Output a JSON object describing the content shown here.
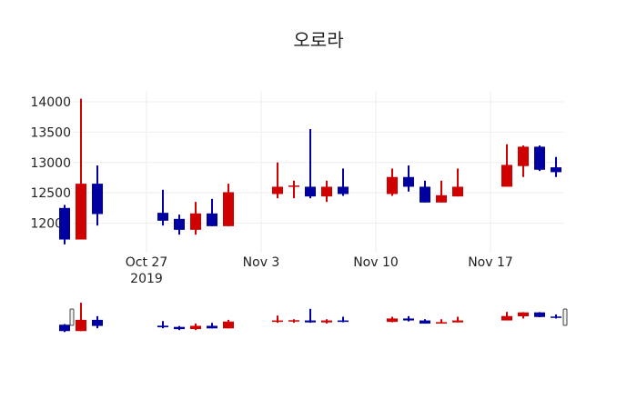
{
  "chart_data": {
    "type": "candlestick",
    "title": "오로라",
    "xlabel": "",
    "ylabel": "",
    "ylim": [
      11600,
      14130
    ],
    "yticks": [
      12000,
      12500,
      13000,
      13500,
      14000
    ],
    "xticks": [
      {
        "date": "2019-10-27",
        "label": "Oct 27",
        "sublabel": "2019"
      },
      {
        "date": "2019-11-03",
        "label": "Nov 3",
        "sublabel": ""
      },
      {
        "date": "2019-11-10",
        "label": "Nov 10",
        "sublabel": ""
      },
      {
        "date": "2019-11-17",
        "label": "Nov 17",
        "sublabel": ""
      }
    ],
    "grid": true,
    "rangeslider": true,
    "increasing_color": "#d00000",
    "decreasing_color": "#0000a0",
    "x": [
      "2019-10-22",
      "2019-10-23",
      "2019-10-24",
      "2019-10-28",
      "2019-10-29",
      "2019-10-30",
      "2019-10-31",
      "2019-11-01",
      "2019-11-04",
      "2019-11-05",
      "2019-11-06",
      "2019-11-07",
      "2019-11-08",
      "2019-11-11",
      "2019-11-12",
      "2019-11-13",
      "2019-11-14",
      "2019-11-15",
      "2019-11-18",
      "2019-11-19",
      "2019-11-20",
      "2019-11-21"
    ],
    "open": [
      12250,
      11730,
      12650,
      12170,
      12070,
      11890,
      12160,
      11950,
      12480,
      12600,
      12600,
      12440,
      12600,
      12480,
      12760,
      12600,
      12340,
      12440,
      12600,
      12940,
      13260,
      12920
    ],
    "high": [
      12300,
      14050,
      12950,
      12550,
      12140,
      12350,
      12400,
      12650,
      13000,
      12700,
      13550,
      12700,
      12900,
      12900,
      12950,
      12700,
      12700,
      12900,
      13300,
      13280,
      13280,
      13090
    ],
    "low": [
      11650,
      11730,
      11960,
      11960,
      11810,
      11810,
      11950,
      11950,
      12410,
      12410,
      12410,
      12350,
      12450,
      12450,
      12520,
      12340,
      12340,
      12440,
      12600,
      12760,
      12860,
      12760
    ],
    "close": [
      11730,
      12650,
      12150,
      12040,
      11890,
      12160,
      11950,
      12510,
      12600,
      12620,
      12440,
      12600,
      12480,
      12760,
      12600,
      12340,
      12460,
      12600,
      12960,
      13260,
      12880,
      12840
    ]
  }
}
